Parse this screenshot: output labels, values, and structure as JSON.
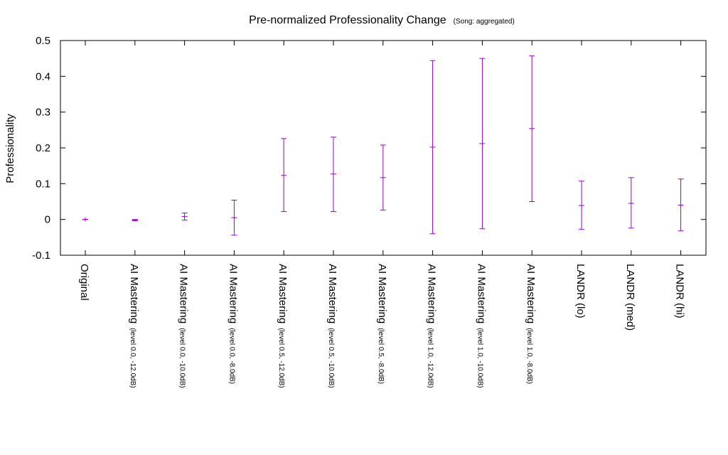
{
  "chart_data": {
    "type": "errorbar",
    "title": "Pre-normalized Professionality Change",
    "subtitle": "(Song: aggregated)",
    "xlabel": "",
    "ylabel": "Professionality",
    "ylim": [
      -0.1,
      0.5
    ],
    "yticks": [
      "-0.1",
      "0",
      "0.1",
      "0.2",
      "0.3",
      "0.4",
      "0.5"
    ],
    "grid": false,
    "color": "#9400d3",
    "categories": [
      {
        "main": "Original",
        "sub": ""
      },
      {
        "main": "AI Mastering",
        "sub": "(level 0.0, -12.0dB)"
      },
      {
        "main": "AI Mastering",
        "sub": "(level 0.0, -10.0dB)"
      },
      {
        "main": "AI Mastering",
        "sub": "(level 0.0, -8.0dB)"
      },
      {
        "main": "AI Mastering",
        "sub": "(level 0.5, -12.0dB)"
      },
      {
        "main": "AI Mastering",
        "sub": "(level 0.5, -10.0dB)"
      },
      {
        "main": "AI Mastering",
        "sub": "(level 0.5, -8.0dB)"
      },
      {
        "main": "AI Mastering",
        "sub": "(level 1.0, -12.0dB)"
      },
      {
        "main": "AI Mastering",
        "sub": "(level 1.0, -10.0dB)"
      },
      {
        "main": "AI Mastering",
        "sub": "(level 1.0, -8.0dB)"
      },
      {
        "main": "LANDR (lo)",
        "sub": ""
      },
      {
        "main": "LANDR (med)",
        "sub": ""
      },
      {
        "main": "LANDR (hi)",
        "sub": ""
      }
    ],
    "series": [
      {
        "mean": [
          0.0,
          -0.002,
          0.008,
          0.005,
          0.123,
          0.127,
          0.117,
          0.202,
          0.212,
          0.254,
          0.039,
          0.045,
          0.04
        ],
        "low": [
          0.0,
          -0.004,
          -0.002,
          -0.044,
          0.022,
          0.022,
          0.026,
          -0.04,
          -0.026,
          0.05,
          -0.028,
          -0.024,
          -0.032
        ],
        "high": [
          0.0,
          0.0,
          0.018,
          0.054,
          0.226,
          0.23,
          0.208,
          0.444,
          0.45,
          0.457,
          0.107,
          0.117,
          0.113
        ]
      }
    ]
  }
}
